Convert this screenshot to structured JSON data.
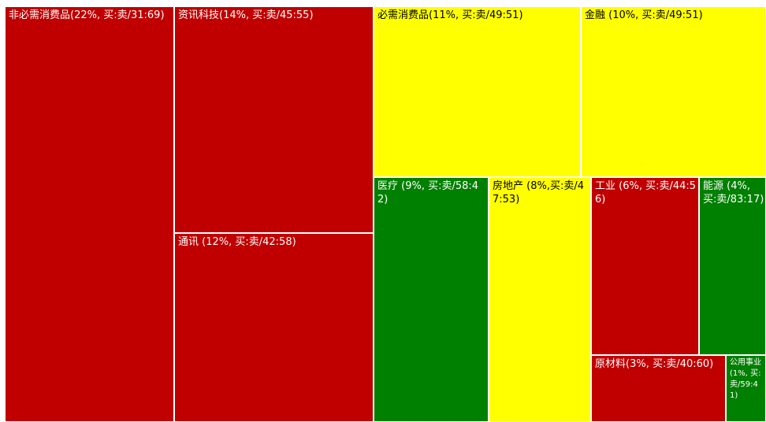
{
  "chart_data": {
    "type": "treemap",
    "tiles": [
      {
        "sector": "非必需消费品",
        "weight_pct": 22,
        "buy_sell": "31:69",
        "color": "#c00000",
        "label": "非必需消费品(22%, 买:卖/31:69)"
      },
      {
        "sector": "资讯科技",
        "weight_pct": 14,
        "buy_sell": "45:55",
        "color": "#c00000",
        "label": "资讯科技(14%, 买:卖/45:55)"
      },
      {
        "sector": "通讯",
        "weight_pct": 12,
        "buy_sell": "42:58",
        "color": "#c00000",
        "label": "通讯 (12%, 买:卖/42:58)"
      },
      {
        "sector": "必需消费品",
        "weight_pct": 11,
        "buy_sell": "49:51",
        "color": "#ffff00",
        "label": "必需消费品(11%, 买:卖/49:51)"
      },
      {
        "sector": "金融",
        "weight_pct": 10,
        "buy_sell": "49:51",
        "color": "#ffff00",
        "label": "金融 (10%, 买:卖/49:51)"
      },
      {
        "sector": "医疗",
        "weight_pct": 9,
        "buy_sell": "58:42",
        "color": "#008000",
        "label": "医疗 (9%, 买:卖/58:42)"
      },
      {
        "sector": "房地产",
        "weight_pct": 8,
        "buy_sell": "47:53",
        "color": "#ffff00",
        "label": "房地产 (8%,买:卖/47:53)"
      },
      {
        "sector": "工业",
        "weight_pct": 6,
        "buy_sell": "44:56",
        "color": "#c00000",
        "label": "工业 (6%, 买:卖/44:56)"
      },
      {
        "sector": "能源",
        "weight_pct": 4,
        "buy_sell": "83:17",
        "color": "#008000",
        "label": "能源 (4%, 买:卖/83:17)"
      },
      {
        "sector": "原材料",
        "weight_pct": 3,
        "buy_sell": "40:60",
        "color": "#c00000",
        "label": "原材料(3%, 买:卖/40:60)"
      },
      {
        "sector": "公用事业",
        "weight_pct": 1,
        "buy_sell": "59:41",
        "color": "#008000",
        "label": "公用事业 (1%, 买:卖/59:41)"
      }
    ]
  }
}
